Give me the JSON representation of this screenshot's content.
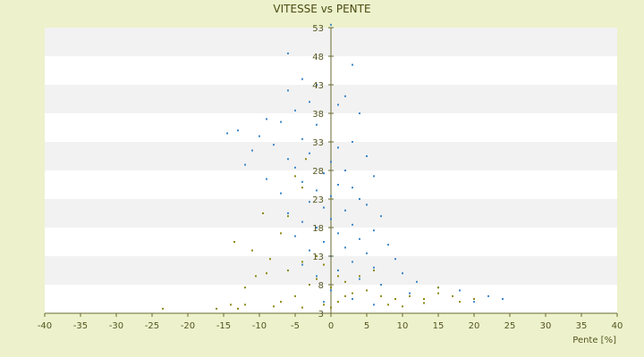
{
  "chart_data": {
    "type": "scatter",
    "title": "VITESSE vs PENTE",
    "xlabel": "Pente [%]",
    "ylabel": "",
    "xlim": [
      -40,
      40
    ],
    "ylim": [
      3,
      53
    ],
    "x_ticks": [
      -40,
      -35,
      -30,
      -25,
      -20,
      -15,
      -10,
      -5,
      0,
      5,
      10,
      15,
      20,
      25,
      30,
      35,
      40
    ],
    "y_ticks": [
      3,
      8,
      13,
      18,
      23,
      28,
      33,
      38,
      43,
      48,
      53
    ],
    "x_tick_labels": [
      "-40",
      "-35",
      "-30",
      "-25",
      "-20",
      "-15",
      "-10",
      "-5",
      "0",
      "5",
      "10",
      "15",
      "20",
      "25",
      "30",
      "35",
      "40"
    ],
    "y_tick_labels": [
      "3",
      "8",
      "13",
      "18",
      "23",
      "28",
      "33",
      "38",
      "43",
      "48",
      "53"
    ],
    "grid": "horizontal-bands",
    "legend": "none",
    "series": [
      {
        "color": "#3d86c6",
        "points": [
          [
            0,
            53.5
          ],
          [
            -6,
            48.5
          ],
          [
            3,
            46.5
          ],
          [
            -4,
            44
          ],
          [
            -2,
            43
          ],
          [
            -6,
            42
          ],
          [
            2,
            41
          ],
          [
            -3,
            40
          ],
          [
            1,
            39.5
          ],
          [
            -5,
            38.5
          ],
          [
            4,
            38
          ],
          [
            -9,
            37
          ],
          [
            -7,
            36.5
          ],
          [
            -2,
            36
          ],
          [
            -13,
            35
          ],
          [
            -14.5,
            34.5
          ],
          [
            -10,
            34
          ],
          [
            -4,
            33.5
          ],
          [
            3,
            33
          ],
          [
            -8,
            32.5
          ],
          [
            1,
            32
          ],
          [
            -11,
            31.5
          ],
          [
            -3,
            31
          ],
          [
            5,
            30.5
          ],
          [
            -6,
            30
          ],
          [
            0,
            29.5
          ],
          [
            -12,
            29
          ],
          [
            -5,
            28.5
          ],
          [
            2,
            28
          ],
          [
            -1,
            27.5
          ],
          [
            6,
            27
          ],
          [
            -9,
            26.5
          ],
          [
            -4,
            26
          ],
          [
            1,
            25.5
          ],
          [
            3,
            25
          ],
          [
            -2,
            24.5
          ],
          [
            -7,
            24
          ],
          [
            0,
            23.5
          ],
          [
            4,
            23
          ],
          [
            -3,
            22.5
          ],
          [
            5,
            22
          ],
          [
            -1,
            21.5
          ],
          [
            2,
            21
          ],
          [
            -6,
            20.5
          ],
          [
            7,
            20
          ],
          [
            0,
            19.5
          ],
          [
            -4,
            19
          ],
          [
            3,
            18.5
          ],
          [
            -2,
            18
          ],
          [
            6,
            17.5
          ],
          [
            1,
            17
          ],
          [
            -5,
            16.5
          ],
          [
            4,
            16
          ],
          [
            -1,
            15.5
          ],
          [
            8,
            15
          ],
          [
            2,
            14.5
          ],
          [
            -3,
            14
          ],
          [
            5,
            13.5
          ],
          [
            0,
            13
          ],
          [
            9,
            12.5
          ],
          [
            3,
            12
          ],
          [
            -4,
            11.5
          ],
          [
            6,
            11
          ],
          [
            1,
            10.5
          ],
          [
            10,
            10
          ],
          [
            -2,
            9.5
          ],
          [
            4,
            9
          ],
          [
            12,
            8.5
          ],
          [
            7,
            8
          ],
          [
            15,
            7.5
          ],
          [
            0,
            7
          ],
          [
            18,
            7
          ],
          [
            22,
            6
          ],
          [
            11,
            6.5
          ],
          [
            24,
            5.5
          ],
          [
            20,
            5
          ],
          [
            3,
            5.5
          ],
          [
            -1,
            5
          ],
          [
            6,
            4.5
          ],
          [
            13,
            4.8
          ]
        ]
      },
      {
        "color": "#8c8a14",
        "points": [
          [
            -23.5,
            3.8
          ],
          [
            -16,
            3.8
          ],
          [
            -13,
            3.8
          ],
          [
            -12,
            7.5
          ],
          [
            -10.5,
            9.5
          ],
          [
            -9,
            10
          ],
          [
            -8.5,
            12.5
          ],
          [
            -11,
            14
          ],
          [
            -13.5,
            15.5
          ],
          [
            -7,
            17
          ],
          [
            -6,
            20
          ],
          [
            -9.5,
            20.5
          ],
          [
            -4,
            25
          ],
          [
            -5,
            27
          ],
          [
            -3.5,
            30
          ],
          [
            -2,
            13
          ],
          [
            -4,
            12
          ],
          [
            -6,
            10.5
          ],
          [
            -3,
            8
          ],
          [
            -5,
            6
          ],
          [
            -7,
            5
          ],
          [
            -1,
            4.5
          ],
          [
            0,
            4
          ],
          [
            1,
            5
          ],
          [
            2,
            6
          ],
          [
            3,
            6.5
          ],
          [
            5,
            7
          ],
          [
            7,
            6
          ],
          [
            9,
            5.5
          ],
          [
            11,
            6
          ],
          [
            13,
            5.5
          ],
          [
            15,
            6.5
          ],
          [
            17,
            6
          ],
          [
            18,
            5
          ],
          [
            20,
            5.5
          ],
          [
            15,
            7.5
          ],
          [
            13,
            4.8
          ],
          [
            10,
            4.2
          ],
          [
            8,
            4.5
          ],
          [
            -4,
            4
          ],
          [
            -8,
            4.2
          ],
          [
            0,
            7.5
          ],
          [
            2,
            8.5
          ],
          [
            4,
            9.5
          ],
          [
            6,
            10.5
          ],
          [
            -1,
            11.5
          ],
          [
            -2,
            9
          ],
          [
            1,
            9.5
          ],
          [
            -12,
            4.5
          ],
          [
            -14,
            4.5
          ]
        ]
      }
    ]
  }
}
